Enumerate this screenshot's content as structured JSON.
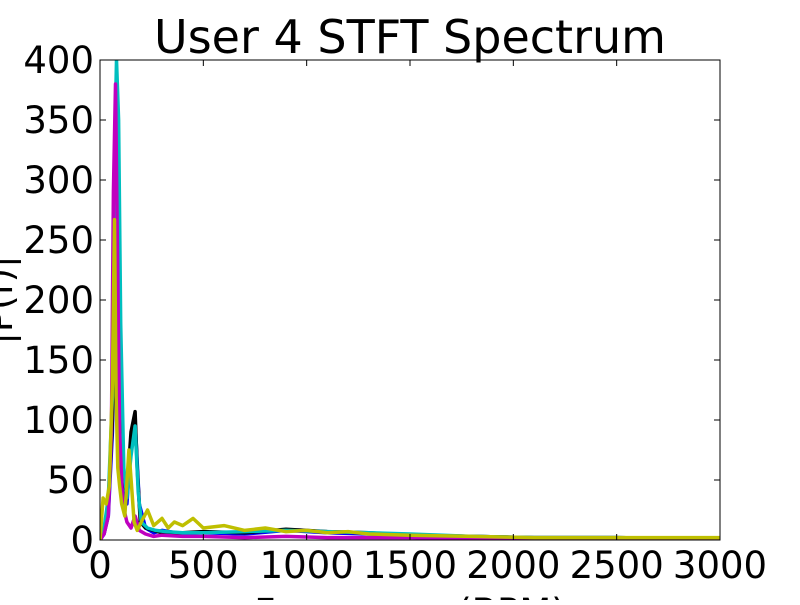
{
  "chart_data": {
    "type": "line",
    "title": "User 4 STFT Spectrum",
    "xlabel": "Frequency (BPM)",
    "ylabel": "|P(f)|",
    "xlim": [
      0,
      3000
    ],
    "ylim": [
      0,
      400
    ],
    "xticks": [
      "0",
      "500",
      "1000",
      "1500",
      "2000",
      "2500",
      "3000"
    ],
    "yticks": [
      "0",
      "50",
      "100",
      "150",
      "200",
      "250",
      "300",
      "350",
      "400"
    ],
    "grid": false,
    "legend": "none",
    "series": [
      {
        "color": "#0000ff",
        "x": [
          0,
          20,
          40,
          60,
          75,
          85,
          95,
          110,
          130,
          150,
          170,
          190,
          220,
          260,
          300,
          400,
          500,
          700,
          900,
          1100,
          1300,
          1500,
          1800,
          2100,
          2500,
          3000
        ],
        "y": [
          0,
          5,
          20,
          90,
          250,
          280,
          150,
          40,
          30,
          80,
          100,
          30,
          10,
          6,
          8,
          5,
          6,
          5,
          8,
          6,
          5,
          4,
          3,
          2,
          2,
          1
        ]
      },
      {
        "color": "#000000",
        "x": [
          0,
          20,
          40,
          60,
          75,
          85,
          95,
          110,
          130,
          150,
          170,
          180,
          195,
          220,
          260,
          300,
          400,
          500,
          700,
          900,
          1100,
          1300,
          1500,
          1800,
          2100,
          2500,
          3000
        ],
        "y": [
          0,
          8,
          30,
          100,
          300,
          320,
          160,
          50,
          40,
          90,
          107,
          60,
          15,
          10,
          8,
          6,
          6,
          7,
          6,
          9,
          7,
          6,
          4,
          3,
          2,
          2,
          1
        ]
      },
      {
        "color": "#00bfbf",
        "x": [
          0,
          20,
          40,
          60,
          70,
          80,
          90,
          100,
          115,
          130,
          150,
          170,
          185,
          200,
          230,
          270,
          320,
          400,
          500,
          700,
          900,
          1100,
          1300,
          1500,
          1800,
          2100,
          2500,
          3000
        ],
        "y": [
          0,
          10,
          35,
          120,
          320,
          400,
          350,
          180,
          60,
          35,
          70,
          95,
          40,
          15,
          10,
          8,
          7,
          6,
          6,
          7,
          8,
          7,
          6,
          5,
          3,
          2,
          2,
          1
        ]
      },
      {
        "color": "#bf00bf",
        "x": [
          0,
          20,
          40,
          55,
          65,
          75,
          85,
          95,
          110,
          130,
          150,
          170,
          190,
          220,
          260,
          300,
          400,
          500,
          700,
          900,
          1100,
          1300,
          1500,
          1800,
          2100,
          2500,
          3000
        ],
        "y": [
          0,
          5,
          20,
          90,
          290,
          380,
          230,
          90,
          30,
          15,
          10,
          20,
          8,
          5,
          3,
          4,
          3,
          3,
          2,
          3,
          2,
          2,
          2,
          1,
          1,
          1,
          1
        ]
      },
      {
        "color": "#bfbf00",
        "x": [
          0,
          15,
          30,
          45,
          60,
          70,
          78,
          86,
          95,
          105,
          120,
          140,
          155,
          165,
          180,
          200,
          230,
          260,
          300,
          330,
          360,
          400,
          450,
          500,
          600,
          700,
          800,
          900,
          1000,
          1100,
          1200,
          1300,
          1500,
          1800,
          2100,
          2500,
          3000
        ],
        "y": [
          0,
          35,
          30,
          45,
          130,
          267,
          120,
          60,
          45,
          30,
          20,
          75,
          40,
          15,
          8,
          15,
          25,
          12,
          18,
          10,
          15,
          12,
          18,
          10,
          12,
          8,
          10,
          7,
          8,
          6,
          7,
          5,
          4,
          3,
          2,
          2,
          2
        ]
      }
    ]
  }
}
